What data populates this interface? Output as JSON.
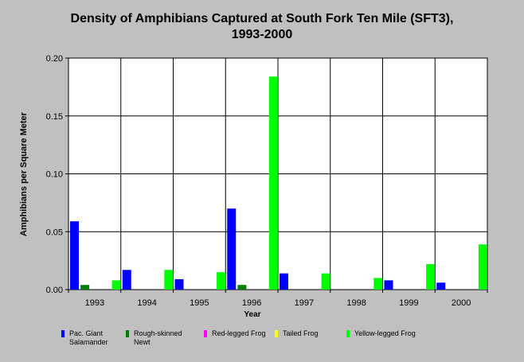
{
  "chart_data": {
    "type": "bar",
    "title": "Density of Amphibians Captured at South Fork Ten Mile (SFT3),",
    "subtitle": "1993-2000",
    "xlabel": "Year",
    "ylabel": "Amphibians per Square Meter",
    "ylim": [
      0,
      0.2
    ],
    "yticks": [
      "0.00",
      "0.05",
      "0.10",
      "0.15",
      "0.20"
    ],
    "categories": [
      "1993",
      "1994",
      "1995",
      "1996",
      "1997",
      "1998",
      "1999",
      "2000"
    ],
    "grid": true,
    "legend_position": "bottom",
    "series": [
      {
        "name": "Pac. Giant Salamander",
        "color": "#0000ff",
        "values": [
          0.059,
          0.017,
          0.009,
          0.07,
          0.014,
          0,
          0.008,
          0.006
        ]
      },
      {
        "name": "Rough-skinned Newt",
        "color": "#008000",
        "values": [
          0.004,
          0,
          0,
          0.004,
          0,
          0,
          0,
          0
        ]
      },
      {
        "name": "Red-legged Frog",
        "color": "#ff00ff",
        "values": [
          0,
          0,
          0,
          0,
          0,
          0,
          0,
          0
        ]
      },
      {
        "name": "Tailed Frog",
        "color": "#ffff00",
        "values": [
          0,
          0,
          0,
          0,
          0,
          0,
          0,
          0
        ]
      },
      {
        "name": "Yellow-legged Frog",
        "color": "#00ff00",
        "values": [
          0.008,
          0.017,
          0.015,
          0.184,
          0.014,
          0.01,
          0.022,
          0.039
        ]
      }
    ]
  }
}
